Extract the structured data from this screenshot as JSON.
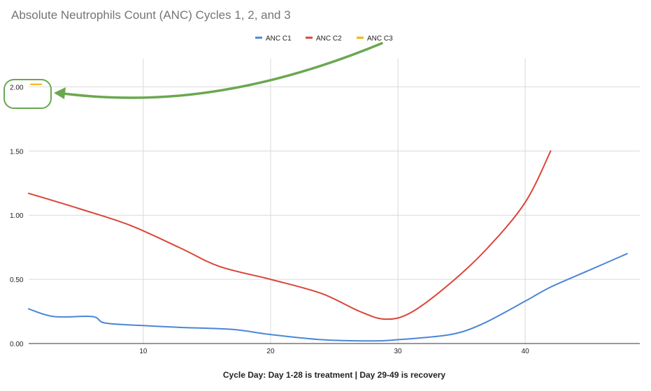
{
  "chart_data": {
    "type": "line",
    "title": "Absolute Neutrophils Count (ANC) Cycles 1, 2, and 3",
    "xlabel": "Cycle Day: Day 1-28 is treatment | Day 29-49 is recovery",
    "ylabel": "",
    "xlim": [
      1,
      49
    ],
    "ylim": [
      0,
      2.1
    ],
    "x_ticks": [
      "10",
      "20",
      "30",
      "40"
    ],
    "x_tick_values": [
      10,
      20,
      30,
      40
    ],
    "y_ticks": [
      "0.00",
      "0.50",
      "1.00",
      "1.50",
      "2.00"
    ],
    "y_tick_values": [
      0,
      0.5,
      1.0,
      1.5,
      2.0
    ],
    "grid": true,
    "legend_position": "top-center",
    "series": [
      {
        "name": "ANC C1",
        "color": "#4a86d8",
        "points": [
          [
            1,
            0.27
          ],
          [
            3,
            0.21
          ],
          [
            6,
            0.21
          ],
          [
            7,
            0.16
          ],
          [
            10,
            0.14
          ],
          [
            13,
            0.125
          ],
          [
            17,
            0.11
          ],
          [
            20,
            0.07
          ],
          [
            24,
            0.03
          ],
          [
            28,
            0.02
          ],
          [
            30,
            0.03
          ],
          [
            33,
            0.055
          ],
          [
            35,
            0.09
          ],
          [
            37,
            0.17
          ],
          [
            40,
            0.33
          ],
          [
            42,
            0.44
          ],
          [
            45,
            0.57
          ],
          [
            48,
            0.7
          ]
        ]
      },
      {
        "name": "ANC C2",
        "color": "#db4437",
        "points": [
          [
            1,
            1.17
          ],
          [
            5,
            1.05
          ],
          [
            9,
            0.92
          ],
          [
            13,
            0.74
          ],
          [
            16,
            0.6
          ],
          [
            20,
            0.5
          ],
          [
            24,
            0.39
          ],
          [
            27,
            0.25
          ],
          [
            29,
            0.19
          ],
          [
            31,
            0.24
          ],
          [
            34,
            0.46
          ],
          [
            37,
            0.74
          ],
          [
            40,
            1.1
          ],
          [
            42,
            1.5
          ]
        ]
      },
      {
        "name": "ANC C3",
        "color": "#f4b400",
        "points": []
      }
    ],
    "annotation": {
      "type": "highlight-arrow",
      "color": "#6aa84f",
      "from": "legend ANC C3",
      "to": "ANC C3 marker at y = 2.00"
    }
  }
}
